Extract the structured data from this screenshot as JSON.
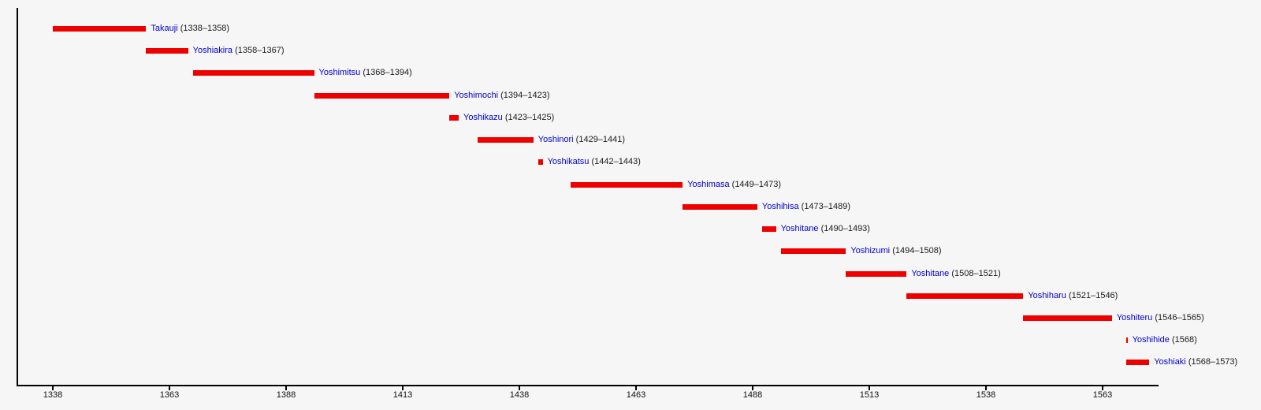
{
  "page": {
    "background_color": "#f7f6f6"
  },
  "colors": {
    "bar": "#ee0000",
    "name_link": "#0000cc",
    "year_text": "#1a1a1a",
    "axis": "#000000"
  },
  "chart_data": {
    "type": "bar",
    "subtype": "horizontal-gantt-timeline",
    "title": "",
    "legend": "none",
    "grid": false,
    "x_axis": {
      "tick_years": [
        1338,
        1363,
        1388,
        1413,
        1438,
        1463,
        1488,
        1513,
        1538,
        1563
      ],
      "min_year": 1330,
      "max_year": 1576
    },
    "series": [
      {
        "name": "Takauji",
        "start": 1338,
        "end": 1358,
        "years": "(1338–1358)"
      },
      {
        "name": "Yoshiakira",
        "start": 1358,
        "end": 1367,
        "years": "(1358–1367)"
      },
      {
        "name": "Yoshimitsu",
        "start": 1368,
        "end": 1394,
        "years": "(1368–1394)"
      },
      {
        "name": "Yoshimochi",
        "start": 1394,
        "end": 1423,
        "years": "(1394–1423)"
      },
      {
        "name": "Yoshikazu",
        "start": 1423,
        "end": 1425,
        "years": "(1423–1425)"
      },
      {
        "name": "Yoshinori",
        "start": 1429,
        "end": 1441,
        "years": "(1429–1441)"
      },
      {
        "name": "Yoshikatsu",
        "start": 1442,
        "end": 1443,
        "years": "(1442–1443)"
      },
      {
        "name": "Yoshimasa",
        "start": 1449,
        "end": 1473,
        "years": "(1449–1473)"
      },
      {
        "name": "Yoshihisa",
        "start": 1473,
        "end": 1489,
        "years": "(1473–1489)"
      },
      {
        "name": "Yoshitane",
        "start": 1490,
        "end": 1493,
        "years": "(1490–1493)"
      },
      {
        "name": "Yoshizumi",
        "start": 1494,
        "end": 1508,
        "years": "(1494–1508)"
      },
      {
        "name": "Yoshitane",
        "start": 1508,
        "end": 1521,
        "years": "(1508–1521)"
      },
      {
        "name": "Yoshiharu",
        "start": 1521,
        "end": 1546,
        "years": "(1521–1546)"
      },
      {
        "name": "Yoshiteru",
        "start": 1546,
        "end": 1565,
        "years": "(1546–1565)"
      },
      {
        "name": "Yoshihide",
        "start": 1568,
        "end": 1568,
        "years": "(1568)"
      },
      {
        "name": "Yoshiaki",
        "start": 1568,
        "end": 1573,
        "years": "(1568–1573)"
      }
    ]
  }
}
